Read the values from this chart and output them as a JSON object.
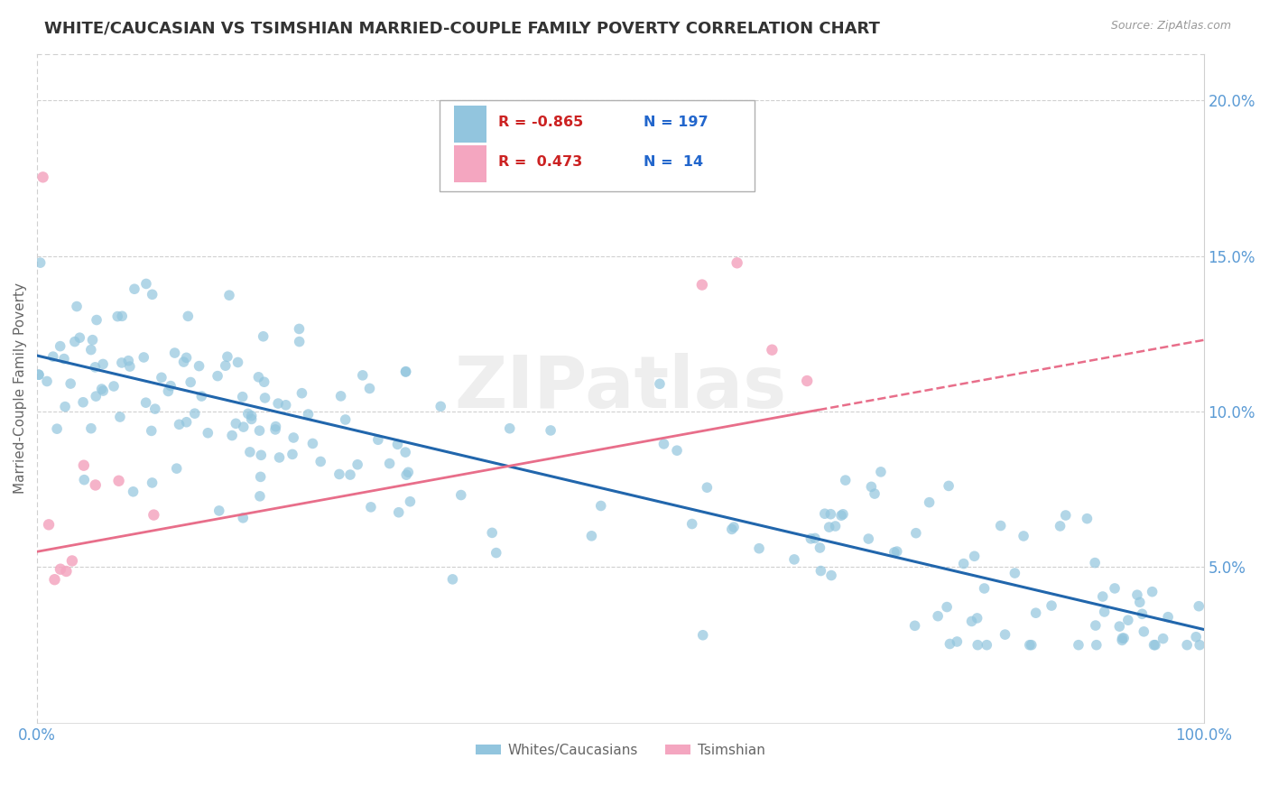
{
  "title": "WHITE/CAUCASIAN VS TSIMSHIAN MARRIED-COUPLE FAMILY POVERTY CORRELATION CHART",
  "source": "Source: ZipAtlas.com",
  "ylabel": "Married-Couple Family Poverty",
  "legend_blue_r": "-0.865",
  "legend_blue_n": "197",
  "legend_pink_r": "0.473",
  "legend_pink_n": "14",
  "legend_blue_label": "Whites/Caucasians",
  "legend_pink_label": "Tsimshian",
  "blue_scatter_color": "#92c5de",
  "pink_scatter_color": "#f4a6c0",
  "blue_line_color": "#2166ac",
  "pink_line_color": "#e86e8a",
  "background_color": "#ffffff",
  "grid_color": "#d0d0d0",
  "title_color": "#333333",
  "axis_label_color": "#666666",
  "tick_color": "#5b9bd5",
  "watermark_color": "#eeeeee",
  "xlim": [
    0.0,
    1.0
  ],
  "ylim": [
    0.0,
    0.215
  ],
  "yticks": [
    0.05,
    0.1,
    0.15,
    0.2
  ],
  "ytick_labels": [
    "5.0%",
    "10.0%",
    "15.0%",
    "20.0%"
  ],
  "xtick_labels": [
    "0.0%",
    "100.0%"
  ],
  "blue_intercept": 0.118,
  "blue_slope": -0.088,
  "pink_intercept": 0.055,
  "pink_slope": 0.068,
  "blue_n": 197,
  "pink_n": 14,
  "blue_seed": 77,
  "pink_seed": 88
}
